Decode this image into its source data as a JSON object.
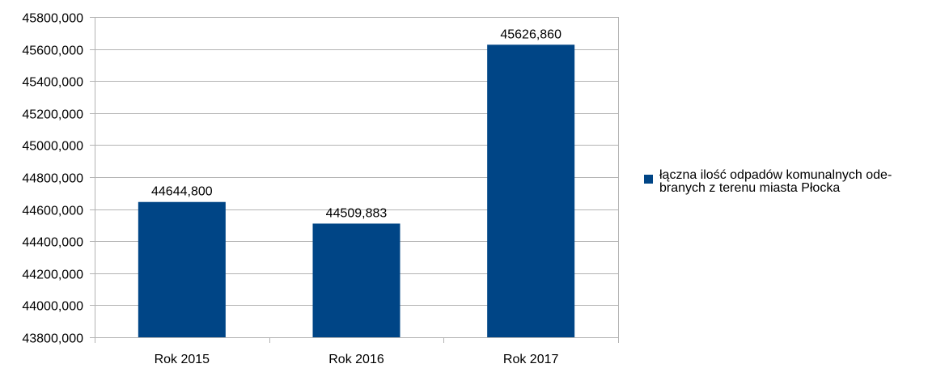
{
  "colors": {
    "bar": "#004586",
    "grid": "#b3b3b3",
    "axis": "#b3b3b3"
  },
  "chart_data": {
    "type": "bar",
    "categories": [
      "Rok 2015",
      "Rok 2016",
      "Rok 2017"
    ],
    "series": [
      {
        "name": "łączna ilość odpadów komunalnych ode-branych z terenu miasta Płocka",
        "values": [
          44644.8,
          44509.883,
          45626.86
        ],
        "labels": [
          "44644,800",
          "44509,883",
          "45626,860"
        ]
      }
    ],
    "ylim": [
      43800,
      45800
    ],
    "yticks": [
      43800,
      44000,
      44200,
      44400,
      44600,
      44800,
      45000,
      45200,
      45400,
      45600,
      45800
    ],
    "ytick_labels": [
      "43800,000",
      "44000,000",
      "44200,000",
      "44400,000",
      "44600,000",
      "44800,000",
      "45000,000",
      "45200,000",
      "45400,000",
      "45600,000",
      "45800,000"
    ],
    "grid": true,
    "legend": "right"
  }
}
